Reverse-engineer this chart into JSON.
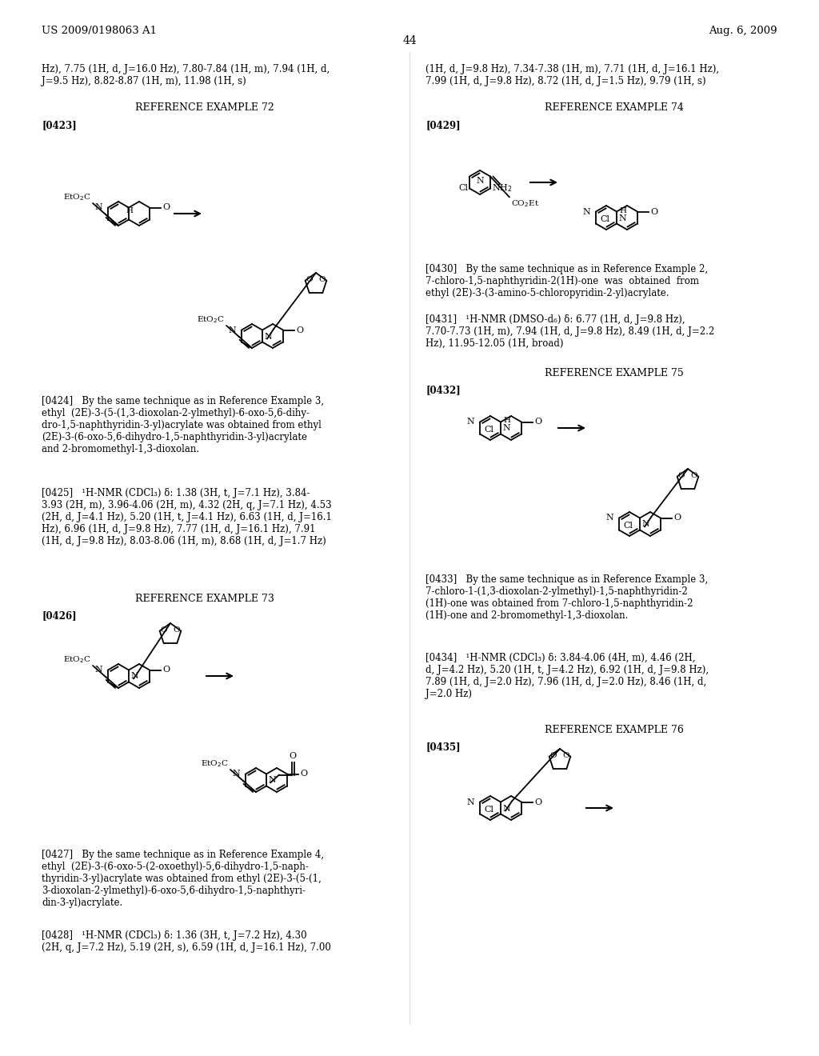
{
  "bg": "#ffffff",
  "tc": "#000000",
  "header_left": "US 2009/0198063 A1",
  "header_right": "Aug. 6, 2009",
  "page_num": "44",
  "top_left": "Hz), 7.75 (1H, d, J=16.0 Hz), 7.80-7.84 (1H, m), 7.94 (1H, d,\nJ=9.5 Hz), 8.82-8.87 (1H, m), 11.98 (1H, s)",
  "top_right": "(1H, d, J=9.8 Hz), 7.34-7.38 (1H, m), 7.71 (1H, d, J=16.1 Hz),\n7.99 (1H, d, J=9.8 Hz), 8.72 (1H, d, J=1.5 Hz), 9.79 (1H, s)",
  "ref72": "REFERENCE EXAMPLE 72",
  "ref73": "REFERENCE EXAMPLE 73",
  "ref74": "REFERENCE EXAMPLE 74",
  "ref75": "REFERENCE EXAMPLE 75",
  "ref76": "REFERENCE EXAMPLE 76",
  "t0424": "[0424]   By the same technique as in Reference Example 3,\nethyl  (2E)-3-(5-(1,3-dioxolan-2-ylmethyl)-6-oxo-5,6-dihy-\ndro-1,5-naphthyridin-3-yl)acrylate was obtained from ethyl\n(2E)-3-(6-oxo-5,6-dihydro-1,5-naphthyridin-3-yl)acrylate\nand 2-bromomethyl-1,3-dioxolan.",
  "t0425": "[0425]   ¹H-NMR (CDCl₃) δ: 1.38 (3H, t, J=7.1 Hz), 3.84-\n3.93 (2H, m), 3.96-4.06 (2H, m), 4.32 (2H, q, J=7.1 Hz), 4.53\n(2H, d, J=4.1 Hz), 5.20 (1H, t, J=4.1 Hz), 6.63 (1H, d, J=16.1\nHz), 6.96 (1H, d, J=9.8 Hz), 7.77 (1H, d, J=16.1 Hz), 7.91\n(1H, d, J=9.8 Hz), 8.03-8.06 (1H, m), 8.68 (1H, d, J=1.7 Hz)",
  "t0427": "[0427]   By the same technique as in Reference Example 4,\nethyl  (2E)-3-(6-oxo-5-(2-oxoethyl)-5,6-dihydro-1,5-naph-\nthyridin-3-yl)acrylate was obtained from ethyl (2E)-3-(5-(1,\n3-dioxolan-2-ylmethyl)-6-oxo-5,6-dihydro-1,5-naphthyri-\ndin-3-yl)acrylate.",
  "t0428": "[0428]   ¹H-NMR (CDCl₃) δ: 1.36 (3H, t, J=7.2 Hz), 4.30\n(2H, q, J=7.2 Hz), 5.19 (2H, s), 6.59 (1H, d, J=16.1 Hz), 7.00",
  "t0430": "[0430]   By the same technique as in Reference Example 2,\n7-chloro-1,5-naphthyridin-2(1H)-one  was  obtained  from\nethyl (2E)-3-(3-amino-5-chloropyridin-2-yl)acrylate.",
  "t0431": "[0431]   ¹H-NMR (DMSO-d₆) δ: 6.77 (1H, d, J=9.8 Hz),\n7.70-7.73 (1H, m), 7.94 (1H, d, J=9.8 Hz), 8.49 (1H, d, J=2.2\nHz), 11.95-12.05 (1H, broad)",
  "t0433": "[0433]   By the same technique as in Reference Example 3,\n7-chloro-1-(1,3-dioxolan-2-ylmethyl)-1,5-naphthyridin-2\n(1H)-one was obtained from 7-chloro-1,5-naphthyridin-2\n(1H)-one and 2-bromomethyl-1,3-dioxolan.",
  "t0434": "[0434]   ¹H-NMR (CDCl₃) δ: 3.84-4.06 (4H, m), 4.46 (2H,\nd, J=4.2 Hz), 5.20 (1H, t, J=4.2 Hz), 6.92 (1H, d, J=9.8 Hz),\n7.89 (1H, d, J=2.0 Hz), 7.96 (1H, d, J=2.0 Hz), 8.46 (1H, d,\nJ=2.0 Hz)"
}
